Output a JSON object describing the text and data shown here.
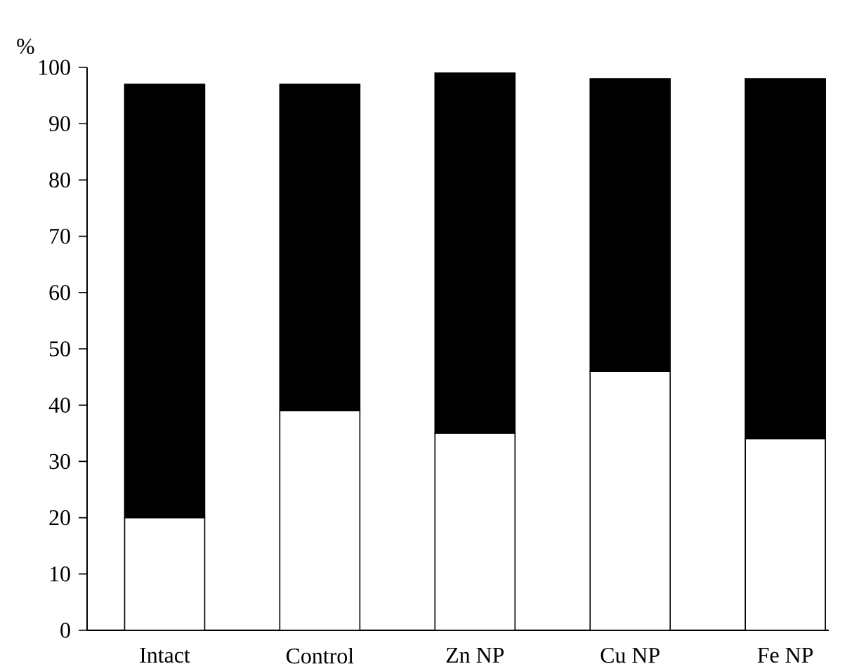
{
  "chart_data": {
    "type": "bar",
    "stacked": true,
    "ylabel": "%",
    "categories": [
      "Intact",
      "Control",
      "Zn NP",
      "Cu NP",
      "Fe NP"
    ],
    "series": [
      {
        "color": "#ffffff",
        "values": [
          20,
          39,
          35,
          46,
          34
        ]
      },
      {
        "color": "#000000",
        "values": [
          77,
          58,
          64,
          52,
          64
        ]
      }
    ],
    "ylim": [
      0,
      100
    ],
    "yticks": [
      0,
      10,
      20,
      30,
      40,
      50,
      60,
      70,
      80,
      90,
      100
    ]
  }
}
